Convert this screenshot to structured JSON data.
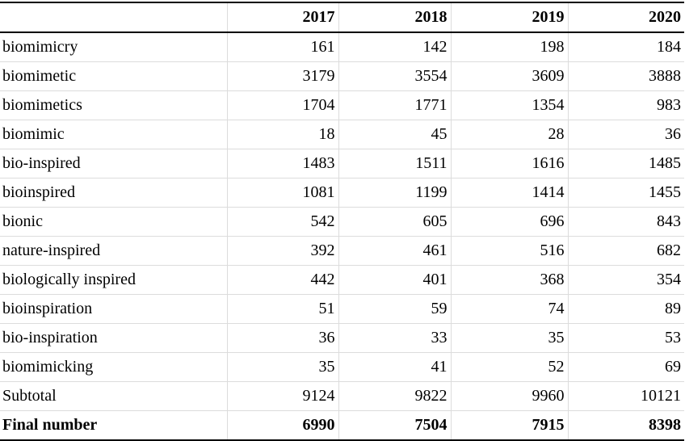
{
  "table": {
    "columns": [
      "",
      "2017",
      "2018",
      "2019",
      "2020"
    ],
    "rows": [
      {
        "label": "biomimicry",
        "values": [
          "161",
          "142",
          "198",
          "184"
        ]
      },
      {
        "label": "biomimetic",
        "values": [
          "3179",
          "3554",
          "3609",
          "3888"
        ]
      },
      {
        "label": "biomimetics",
        "values": [
          "1704",
          "1771",
          "1354",
          "983"
        ]
      },
      {
        "label": "biomimic",
        "values": [
          "18",
          "45",
          "28",
          "36"
        ]
      },
      {
        "label": "bio-inspired",
        "values": [
          "1483",
          "1511",
          "1616",
          "1485"
        ]
      },
      {
        "label": "bioinspired",
        "values": [
          "1081",
          "1199",
          "1414",
          "1455"
        ]
      },
      {
        "label": "bionic",
        "values": [
          "542",
          "605",
          "696",
          "843"
        ]
      },
      {
        "label": "nature-inspired",
        "values": [
          "392",
          "461",
          "516",
          "682"
        ]
      },
      {
        "label": "biologically inspired",
        "values": [
          "442",
          "401",
          "368",
          "354"
        ]
      },
      {
        "label": "bioinspiration",
        "values": [
          "51",
          "59",
          "74",
          "89"
        ]
      },
      {
        "label": "bio-inspiration",
        "values": [
          "36",
          "33",
          "35",
          "53"
        ]
      },
      {
        "label": "biomimicking",
        "values": [
          "35",
          "41",
          "52",
          "69"
        ]
      },
      {
        "label": "Subtotal",
        "values": [
          "9124",
          "9822",
          "9960",
          "10121"
        ]
      },
      {
        "label": "Final number",
        "values": [
          "6990",
          "7504",
          "7915",
          "8398"
        ]
      }
    ]
  }
}
